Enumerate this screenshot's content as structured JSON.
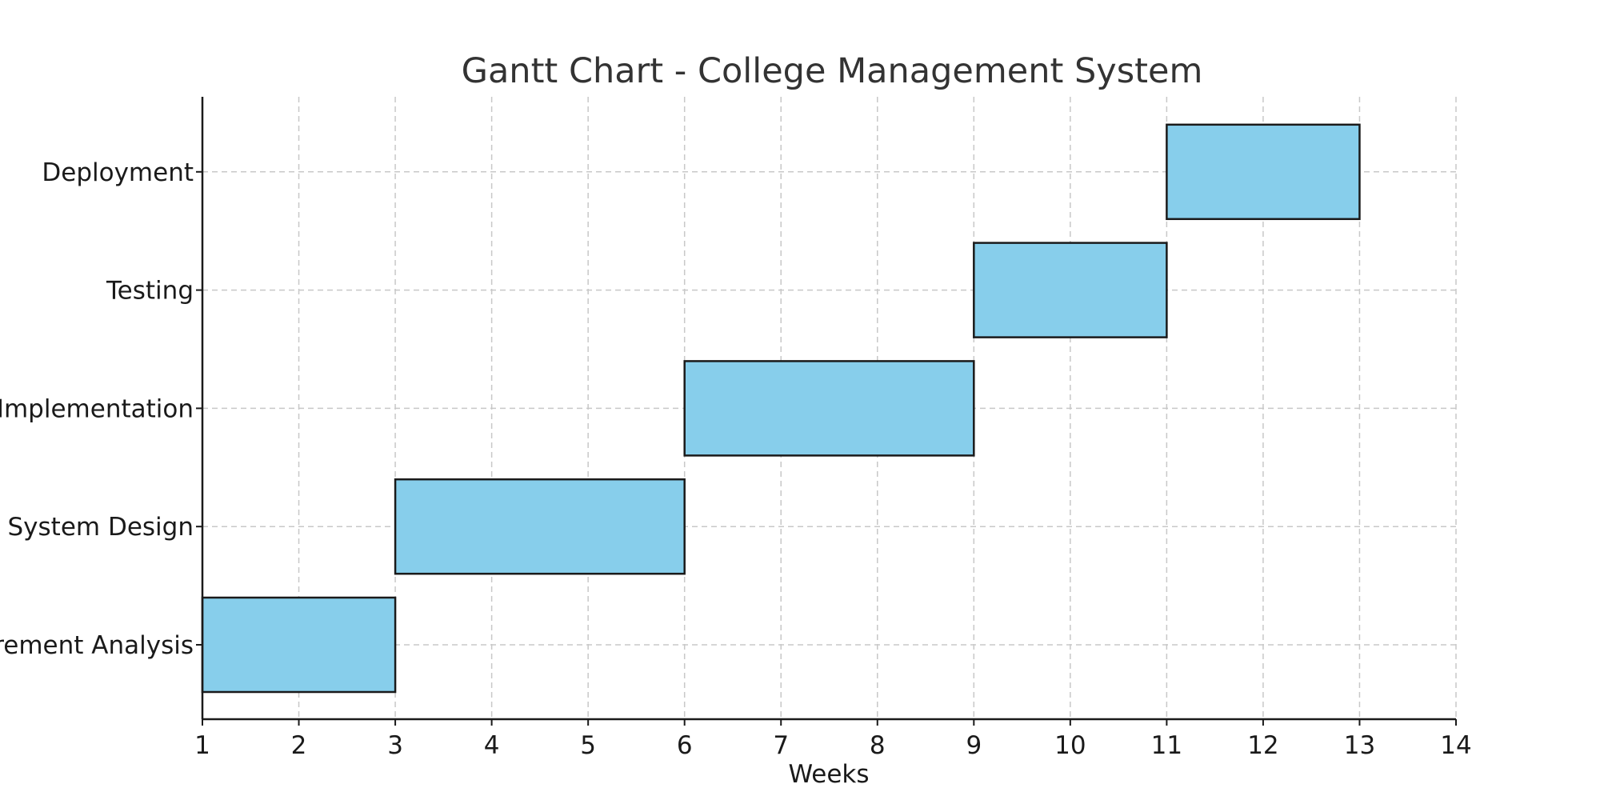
{
  "chart_data": {
    "type": "bar",
    "orientation": "horizontal",
    "title": "Gantt Chart - College Management System",
    "xlabel": "Weeks",
    "ylabel": "",
    "xlim": [
      1,
      14
    ],
    "xticks": [
      1,
      2,
      3,
      4,
      5,
      6,
      7,
      8,
      9,
      10,
      11,
      12,
      13,
      14
    ],
    "grid": true,
    "bar_color": "#87CEEB",
    "edge_color": "#1a1a1a",
    "tasks": [
      {
        "name": "Requirement Analysis",
        "start": 1,
        "end": 3
      },
      {
        "name": "System Design",
        "start": 3,
        "end": 6
      },
      {
        "name": "Implementation",
        "start": 6,
        "end": 9
      },
      {
        "name": "Testing",
        "start": 9,
        "end": 11
      },
      {
        "name": "Deployment",
        "start": 11,
        "end": 13
      }
    ]
  }
}
